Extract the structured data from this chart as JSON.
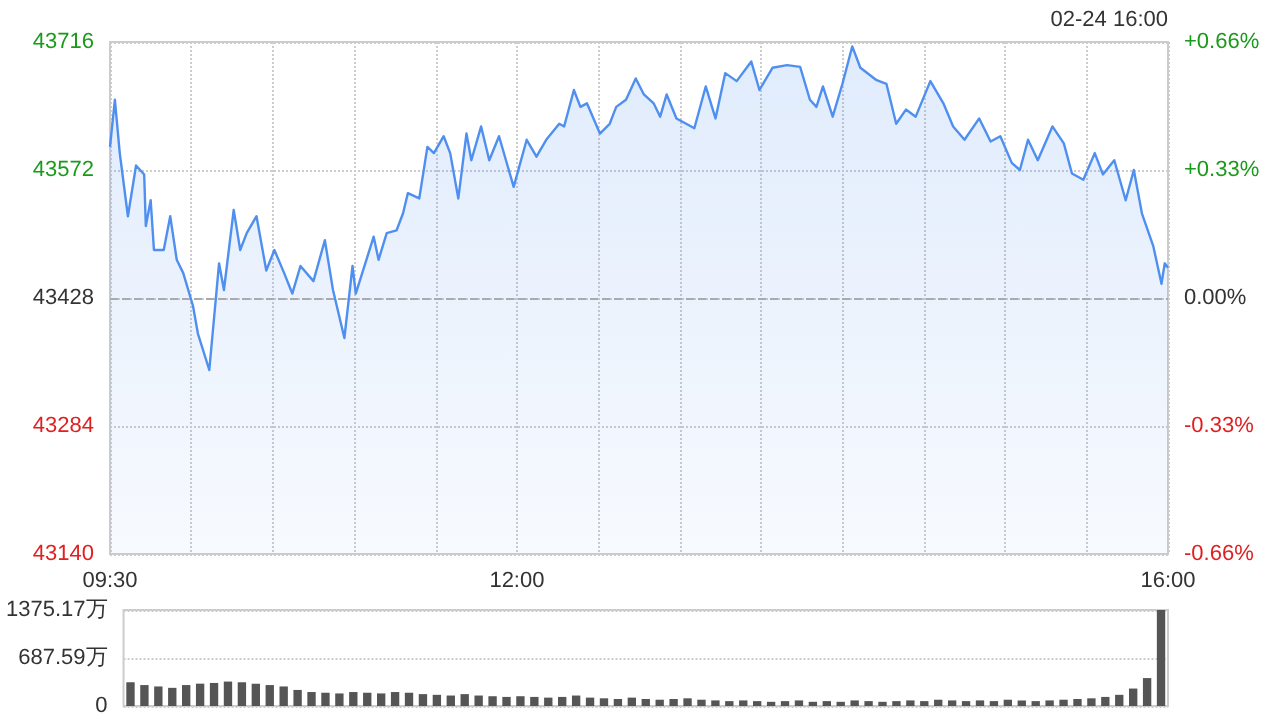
{
  "chart_data": [
    {
      "type": "area",
      "annotations": [
        "02-24 16:00"
      ],
      "x": [
        9.5,
        9.53,
        9.56,
        9.61,
        9.66,
        9.71,
        9.72,
        9.75,
        9.77,
        9.83,
        9.87,
        9.91,
        9.95,
        10.01,
        10.04,
        10.11,
        10.17,
        10.2,
        10.26,
        10.3,
        10.34,
        10.4,
        10.46,
        10.51,
        10.57,
        10.62,
        10.67,
        10.75,
        10.82,
        10.87,
        10.94,
        10.99,
        11.01,
        11.12,
        11.15,
        11.2,
        11.26,
        11.3,
        11.33,
        11.4,
        11.45,
        11.49,
        11.55,
        11.59,
        11.64,
        11.69,
        11.72,
        11.78,
        11.83,
        11.89,
        11.98,
        12.06,
        12.12,
        12.18,
        12.26,
        12.29,
        12.35,
        12.39,
        12.43,
        12.51,
        12.57,
        12.61,
        12.67,
        12.73,
        12.78,
        12.84,
        12.88,
        12.92,
        12.98,
        13.04,
        13.09,
        13.16,
        13.22,
        13.28,
        13.35,
        13.44,
        13.49,
        13.57,
        13.66,
        13.74,
        13.8,
        13.84,
        13.88,
        13.94,
        14.0,
        14.06,
        14.11,
        14.21,
        14.27,
        14.33,
        14.39,
        14.45,
        14.54,
        14.62,
        14.68,
        14.75,
        14.84,
        14.91,
        14.97,
        15.04,
        15.09,
        15.14,
        15.2,
        15.29,
        15.36,
        15.41,
        15.48,
        15.55,
        15.6,
        15.67,
        15.74,
        15.79,
        15.84,
        15.91,
        15.96,
        15.98,
        16.0
      ],
      "series": [
        {
          "color": "#4f8ff0",
          "values": [
            43598,
            43651,
            43591,
            43520,
            43577,
            43567,
            43509,
            43538,
            43482,
            43482,
            43520,
            43471,
            43456,
            43419,
            43388,
            43347,
            43467,
            43437,
            43527,
            43482,
            43501,
            43520,
            43459,
            43482,
            43456,
            43433,
            43464,
            43447,
            43493,
            43437,
            43383,
            43464,
            43433,
            43497,
            43471,
            43501,
            43504,
            43523,
            43546,
            43540,
            43598,
            43591,
            43610,
            43591,
            43540,
            43613,
            43583,
            43621,
            43583,
            43610,
            43553,
            43606,
            43587,
            43606,
            43624,
            43621,
            43662,
            43643,
            43647,
            43613,
            43624,
            43643,
            43651,
            43675,
            43657,
            43647,
            43632,
            43657,
            43630,
            43624,
            43619,
            43666,
            43630,
            43681,
            43672,
            43694,
            43662,
            43687,
            43690,
            43688,
            43651,
            43643,
            43666,
            43632,
            43669,
            43711,
            43687,
            43673,
            43669,
            43624,
            43640,
            43632,
            43672,
            43647,
            43621,
            43606,
            43630,
            43604,
            43610,
            43580,
            43572,
            43606,
            43583,
            43621,
            43602,
            43568,
            43561,
            43591,
            43567,
            43583,
            43538,
            43572,
            43523,
            43486,
            43444,
            43467,
            43462
          ]
        }
      ],
      "xlim": [
        9.5,
        16
      ],
      "xticks": [
        {
          "value": 9.5,
          "label": "09:30"
        },
        {
          "value": 10,
          "label": null
        },
        {
          "value": 10.5,
          "label": null
        },
        {
          "value": 11,
          "label": null
        },
        {
          "value": 11.5,
          "label": null
        },
        {
          "value": 12,
          "label": "12:00"
        },
        {
          "value": 12.5,
          "label": null
        },
        {
          "value": 13,
          "label": null
        },
        {
          "value": 13.5,
          "label": null
        },
        {
          "value": 14,
          "label": null
        },
        {
          "value": 14.5,
          "label": null
        },
        {
          "value": 15,
          "label": null
        },
        {
          "value": 15.5,
          "label": null
        },
        {
          "value": 16,
          "label": "16:00"
        }
      ],
      "ylim": [
        43140,
        43716
      ],
      "yticks": [
        43140,
        43284,
        43428,
        43572,
        43716
      ],
      "y2lim": [
        -0.66,
        0.66
      ],
      "y2ticks": [
        {
          "value": -0.66,
          "label": "-0.66%"
        },
        {
          "value": -0.33,
          "label": "-0.33%"
        },
        {
          "value": 0,
          "label": "0.00%"
        },
        {
          "value": 0.33,
          "label": "+0.33%"
        },
        {
          "value": 0.66,
          "label": "+0.66%"
        }
      ],
      "ref_lines": [
        {
          "axis": "y",
          "value": 43428,
          "color": "#aaaaaa",
          "line_style": "dashed"
        }
      ],
      "grid": true,
      "marker": "none",
      "line_style": "solid"
    },
    {
      "type": "bar",
      "tick_labels": "y",
      "categories": [
        null,
        null,
        null,
        null,
        null,
        null,
        null,
        null,
        null,
        null,
        null,
        null,
        null,
        null,
        null,
        null,
        null,
        null,
        null,
        null,
        null,
        null,
        null,
        null,
        null,
        null,
        null,
        null,
        null,
        null,
        null,
        null,
        null,
        null,
        null,
        null,
        null,
        null,
        null,
        null,
        null,
        null,
        null,
        null,
        null,
        null,
        null,
        null,
        null,
        null,
        null,
        null,
        null,
        null,
        null,
        null,
        null,
        null,
        null,
        null,
        null,
        null,
        null,
        null,
        null,
        null,
        null,
        null,
        null,
        null,
        null,
        null,
        null,
        null,
        null
      ],
      "series": [
        {
          "color": "#555555",
          "values": [
            340,
            300,
            280,
            260,
            300,
            320,
            330,
            350,
            340,
            320,
            300,
            280,
            230,
            200,
            190,
            180,
            200,
            190,
            180,
            200,
            190,
            170,
            160,
            150,
            170,
            150,
            140,
            130,
            140,
            130,
            120,
            130,
            150,
            120,
            110,
            100,
            120,
            100,
            90,
            100,
            110,
            90,
            80,
            70,
            80,
            70,
            60,
            70,
            80,
            60,
            70,
            60,
            80,
            70,
            60,
            70,
            80,
            70,
            90,
            80,
            70,
            80,
            70,
            90,
            80,
            70,
            80,
            90,
            100,
            110,
            130,
            160,
            250,
            400,
            1375.17
          ]
        }
      ],
      "ylim": [
        0,
        1375.17
      ],
      "yticks": [
        0,
        {
          "value": 687.59,
          "label": "687.59万"
        },
        {
          "value": 1375.17,
          "label": "1375.17万"
        }
      ],
      "grid": "y"
    }
  ]
}
